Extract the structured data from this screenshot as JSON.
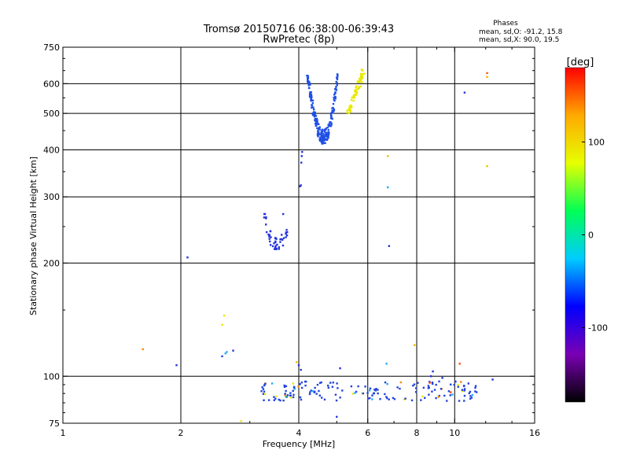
{
  "chart_data": {
    "type": "scatter",
    "title": "Tromsø 20150716 06:38:00-06:39:43",
    "subtitle": "RwPretec (8p)",
    "xlabel": "Frequency [MHz]",
    "ylabel": "Stationary phase Virtual Height [km]",
    "x_scale": "log",
    "y_scale": "log",
    "xlim": [
      1,
      16
    ],
    "ylim": [
      75,
      750
    ],
    "x_ticks": [
      {
        "v": 1,
        "label": "1"
      },
      {
        "v": 2,
        "label": "2"
      },
      {
        "v": 4,
        "label": "4"
      },
      {
        "v": 6,
        "label": "6"
      },
      {
        "v": 8,
        "label": "8"
      },
      {
        "v": 10,
        "label": "10"
      },
      {
        "v": 16,
        "label": "16"
      }
    ],
    "x_grid": [
      2,
      4,
      6,
      8,
      10
    ],
    "y_ticks": [
      {
        "v": 75,
        "label": "75"
      },
      {
        "v": 100,
        "label": "100"
      },
      {
        "v": 200,
        "label": "200"
      },
      {
        "v": 300,
        "label": "300"
      },
      {
        "v": 400,
        "label": "400"
      },
      {
        "v": 500,
        "label": "500"
      },
      {
        "v": 600,
        "label": "600"
      },
      {
        "v": 750,
        "label": "750"
      }
    ],
    "y_grid": [
      100,
      200,
      300,
      400,
      500,
      600
    ],
    "grid": true,
    "phases_header": "Phases",
    "phase_stats": [
      "mean, sd,O: -91.2, 15.8",
      "mean, sd,X:  90.0, 19.5"
    ],
    "colorbar": {
      "label": "[deg]",
      "range": [
        -180,
        180
      ],
      "ticks": [
        {
          "v": 100,
          "label": "100"
        },
        {
          "v": 0,
          "label": "0"
        },
        {
          "v": -100,
          "label": "-100"
        }
      ],
      "stops": [
        "#000000",
        "#7a00b4",
        "#0000ff",
        "#00ccff",
        "#00ff55",
        "#e6ff00",
        "#ffaa00",
        "#ff0000"
      ]
    },
    "series": [
      {
        "kind": "cluster",
        "mode": "Ushape",
        "color": "#1f4fe6",
        "f_range": [
          4.2,
          5.05
        ],
        "h_min": 422,
        "h_top_left": 630,
        "h_top_right": 635,
        "n": 240,
        "width": 28
      },
      {
        "kind": "cluster",
        "mode": "ramp",
        "color": "#e8e800",
        "f_range": [
          5.35,
          5.85
        ],
        "h_from": 500,
        "h_to": 650,
        "n": 70,
        "width": 14
      },
      {
        "kind": "cluster",
        "mode": "Ushape",
        "color": "#2233dd",
        "f_range": [
          3.25,
          3.75
        ],
        "h_min": 218,
        "h_top_left": 270,
        "h_top_right": 245,
        "n": 45,
        "width": 7
      },
      {
        "kind": "cluster",
        "mode": "band",
        "color": "#2244dd",
        "f_range": [
          3.2,
          11.5
        ],
        "h_range": [
          86,
          97
        ],
        "n": 170,
        "accent_colors": [
          "#22aaff",
          "#33cc55",
          "#e6e600",
          "#ff8800",
          "#ff4400"
        ]
      },
      {
        "kind": "points",
        "color": "mixed",
        "points": [
          {
            "f": 4.03,
            "h": 320,
            "c": "#2233dd"
          },
          {
            "f": 4.05,
            "h": 322,
            "c": "#2233dd"
          },
          {
            "f": 4.06,
            "h": 370,
            "c": "#2233dd"
          },
          {
            "f": 4.07,
            "h": 385,
            "c": "#2233dd"
          },
          {
            "f": 4.08,
            "h": 395,
            "c": "#2233dd"
          },
          {
            "f": 2.08,
            "h": 207,
            "c": "#2233dd"
          },
          {
            "f": 1.95,
            "h": 107,
            "c": "#2233dd"
          },
          {
            "f": 1.6,
            "h": 118,
            "c": "#ff8800"
          },
          {
            "f": 2.55,
            "h": 113,
            "c": "#2244dd"
          },
          {
            "f": 2.6,
            "h": 115,
            "c": "#22aaff"
          },
          {
            "f": 2.62,
            "h": 116,
            "c": "#22aaff"
          },
          {
            "f": 2.72,
            "h": 117,
            "c": "#2233dd"
          },
          {
            "f": 2.55,
            "h": 137,
            "c": "#e6e600"
          },
          {
            "f": 2.58,
            "h": 145,
            "c": "#e6e600"
          },
          {
            "f": 2.85,
            "h": 76,
            "c": "#e6e600"
          },
          {
            "f": 3.65,
            "h": 270,
            "c": "#2233dd"
          },
          {
            "f": 4.0,
            "h": 107,
            "c": "#2233dd"
          },
          {
            "f": 4.05,
            "h": 104,
            "c": "#2233dd"
          },
          {
            "f": 3.95,
            "h": 109,
            "c": "#e6c000"
          },
          {
            "f": 5.1,
            "h": 105,
            "c": "#2233dd"
          },
          {
            "f": 5.0,
            "h": 78,
            "c": "#2233dd"
          },
          {
            "f": 6.7,
            "h": 108,
            "c": "#22aaff"
          },
          {
            "f": 6.75,
            "h": 318,
            "c": "#22aaff"
          },
          {
            "f": 6.75,
            "h": 385,
            "c": "#e6c000"
          },
          {
            "f": 6.8,
            "h": 222,
            "c": "#2233dd"
          },
          {
            "f": 7.9,
            "h": 121,
            "c": "#e6c000"
          },
          {
            "f": 10.3,
            "h": 108,
            "c": "#ff5500"
          },
          {
            "f": 10.6,
            "h": 568,
            "c": "#2233dd"
          },
          {
            "f": 12.1,
            "h": 640,
            "c": "#ff5500"
          },
          {
            "f": 12.1,
            "h": 625,
            "c": "#ffaa00"
          },
          {
            "f": 12.1,
            "h": 362,
            "c": "#e6c000"
          },
          {
            "f": 12.5,
            "h": 98,
            "c": "#2233dd"
          },
          {
            "f": 8.7,
            "h": 100,
            "c": "#2233dd"
          },
          {
            "f": 9.3,
            "h": 99,
            "c": "#2233dd"
          },
          {
            "f": 8.8,
            "h": 103,
            "c": "#2233dd"
          }
        ]
      }
    ]
  }
}
